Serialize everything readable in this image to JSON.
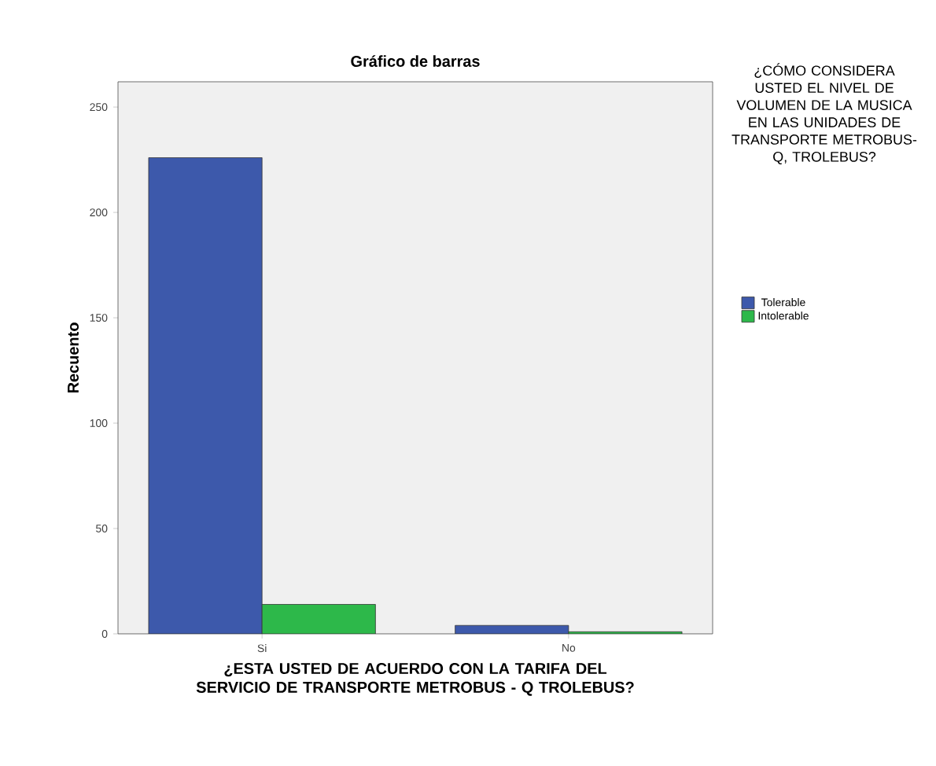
{
  "chart_data": {
    "type": "bar",
    "title": "Gráfico de barras",
    "xlabel": "¿ESTA USTED DE ACUERDO CON LA TARIFA DEL SERVICIO DE TRANSPORTE METROBUS - Q TROLEBUS?",
    "ylabel": "Recuento",
    "legend_title": "¿CÓMO CONSIDERA USTED EL NIVEL DE VOLUMEN DE LA MUSICA EN LAS UNIDADES DE TRANSPORTE METROBUS-Q, TROLEBUS?",
    "categories": [
      "Si",
      "No"
    ],
    "series": [
      {
        "name": "Tolerable",
        "color": "#3d59ab",
        "values": [
          226,
          4
        ]
      },
      {
        "name": "Intolerable",
        "color": "#2db84a",
        "values": [
          14,
          1
        ]
      }
    ],
    "ylim": [
      0,
      262
    ],
    "yticks": [
      0,
      50,
      100,
      150,
      200,
      250
    ],
    "legend": "right",
    "grid": false
  }
}
